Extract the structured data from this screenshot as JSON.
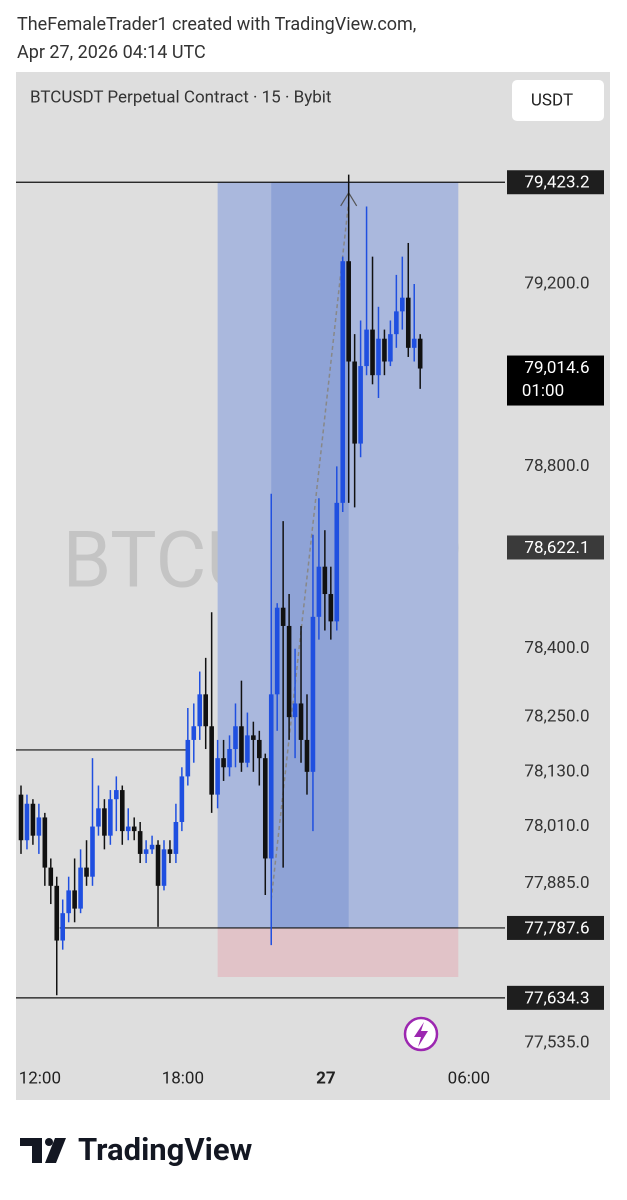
{
  "header": {
    "line1": "TheFemaleTrader1 created with TradingView.com,",
    "line2": "Apr 27, 2026 04:14 UTC"
  },
  "footer": {
    "brand": "TradingView"
  },
  "chart_data": {
    "type": "candlestick",
    "title": "BTCUSDT Perpetual Contract · 15 · Bybit",
    "currency_button": "USDT",
    "watermark": "BTCUSDT.P",
    "categories": [
      null,
      null,
      null,
      "12:00",
      null,
      null,
      null,
      null,
      null,
      null,
      null,
      null,
      null,
      null,
      null,
      null,
      null,
      null,
      null,
      null,
      null,
      null,
      null,
      null,
      null,
      null,
      null,
      "18:00",
      null,
      null,
      null,
      null,
      null,
      null,
      null,
      null,
      null,
      null,
      null,
      null,
      null,
      null,
      null,
      null,
      null,
      null,
      null,
      null,
      null,
      null,
      null,
      "27",
      null,
      null,
      null,
      null,
      null,
      null,
      null,
      null,
      null,
      null,
      null,
      null,
      null,
      null,
      null,
      null,
      null,
      null,
      null,
      null,
      null,
      null,
      null,
      "06:00"
    ],
    "open": [
      78080,
      77980,
      78060,
      77990,
      78030,
      77920,
      77880,
      77760,
      77820,
      77870,
      77830,
      77920,
      77900,
      78010,
      78050,
      77990,
      78070,
      78090,
      78000,
      78010,
      78000,
      77950,
      77960,
      77970,
      77880,
      77960,
      77950,
      78020,
      78120,
      78200,
      78230,
      78300,
      78230,
      78080,
      78160,
      78140,
      78180,
      78230,
      78150,
      78210,
      78200,
      78160,
      77940,
      78300,
      78490,
      78450,
      78250,
      78280,
      78200,
      78130,
      78470,
      78580,
      78520,
      78460,
      78720,
      79250,
      79030,
      78850,
      79020,
      79100,
      79000,
      79080,
      79030,
      79090,
      79140,
      79170,
      79060,
      79080,
      null,
      null,
      null,
      null,
      null,
      null,
      null,
      null
    ],
    "high": [
      78100,
      78080,
      78070,
      78060,
      78040,
      77940,
      77900,
      77850,
      77900,
      77940,
      77960,
      77980,
      78160,
      78100,
      78070,
      78090,
      78120,
      78100,
      78050,
      78030,
      78020,
      77980,
      77990,
      77980,
      77980,
      77980,
      78060,
      78140,
      78270,
      78280,
      78350,
      78380,
      78480,
      78200,
      78200,
      78210,
      78280,
      78330,
      78260,
      78240,
      78220,
      78170,
      78740,
      78500,
      78680,
      78520,
      78400,
      78450,
      78300,
      78650,
      78730,
      78660,
      78580,
      78800,
      79260,
      79440,
      79090,
      79120,
      79370,
      79260,
      79150,
      79100,
      79120,
      79220,
      79260,
      79290,
      79200,
      79090,
      null,
      null,
      null,
      null,
      null,
      null,
      null,
      null
    ],
    "low": [
      77950,
      77960,
      77970,
      77950,
      77880,
      77840,
      77640,
      77740,
      77800,
      77800,
      77820,
      77880,
      77880,
      77990,
      77960,
      77970,
      78000,
      77970,
      77980,
      77980,
      77930,
      77930,
      77950,
      77790,
      77870,
      77930,
      77930,
      78000,
      78100,
      78150,
      78200,
      78180,
      78040,
      78050,
      78110,
      78120,
      78140,
      78130,
      78140,
      78130,
      78100,
      77860,
      77750,
      78220,
      77920,
      78200,
      78160,
      78150,
      78080,
      78000,
      78420,
      78440,
      78420,
      78440,
      78700,
      78720,
      78710,
      78820,
      79000,
      78980,
      78950,
      79000,
      79020,
      79060,
      79100,
      79040,
      79030,
      78970,
      null,
      null,
      null,
      null,
      null,
      null,
      null,
      null
    ],
    "close": [
      77980,
      78060,
      77990,
      78030,
      77920,
      77880,
      77760,
      77820,
      77870,
      77830,
      77920,
      77900,
      78010,
      78050,
      77990,
      78070,
      78090,
      78000,
      78010,
      78000,
      77950,
      77960,
      77970,
      77880,
      77960,
      77950,
      78020,
      78120,
      78200,
      78230,
      78300,
      78230,
      78080,
      78160,
      78140,
      78180,
      78230,
      78150,
      78210,
      78200,
      78160,
      77940,
      78300,
      78490,
      78450,
      78250,
      78280,
      78200,
      78130,
      78470,
      78580,
      78520,
      78460,
      78720,
      79250,
      79030,
      78850,
      79020,
      79100,
      79000,
      79080,
      79030,
      79090,
      79140,
      79170,
      79060,
      79080,
      79014.6,
      null,
      null,
      null,
      null,
      null,
      null,
      null,
      null
    ],
    "up_color": "#1f4fe0",
    "down_color": "#111111",
    "ylim": [
      77487,
      79665
    ],
    "yticks": [
      {
        "value": 79200,
        "label": "79,200.0"
      },
      {
        "value": 78800,
        "label": "78,800.0"
      },
      {
        "value": 78400,
        "label": "78,400.0"
      },
      {
        "value": 78250,
        "label": "78,250.0"
      },
      {
        "value": 78130,
        "label": "78,130.0"
      },
      {
        "value": 78010,
        "label": "78,010.0"
      },
      {
        "value": 77885,
        "label": "77,885.0"
      },
      {
        "value": 77535,
        "label": "77,535.0"
      }
    ],
    "grid": false,
    "levels": [
      {
        "value": 79423.2,
        "label": "79,423.2"
      },
      {
        "value": 78622.1,
        "label": "78,622.1"
      },
      {
        "value": 77787.6,
        "label": "77,787.6"
      },
      {
        "value": 77634.3,
        "label": "77,634.3"
      }
    ],
    "last_price": {
      "value": 79014.6,
      "label": "79,014.6",
      "countdown": "01:00"
    },
    "support_line": 78178,
    "position": {
      "target": 79423.2,
      "entry": 77787.6,
      "stop": 77680
    }
  }
}
